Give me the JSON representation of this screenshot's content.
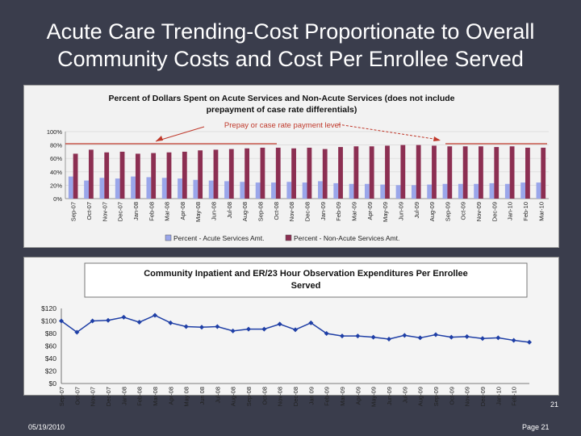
{
  "slide": {
    "title_line1": "Acute Care Trending-Cost Proportionate to Overall",
    "title_line2": "Community Costs and Cost Per Enrollee Served",
    "slide_number": "21",
    "footer_date": "05/19/2010",
    "footer_page": "Page 21"
  },
  "annotation": {
    "label": "Prepay or case rate payment level",
    "color": "#c0392b"
  },
  "chart_data": [
    {
      "type": "bar",
      "title_line1": "Percent of Dollars Spent on Acute Services and Non-Acute Services (does not include",
      "title_line2": "prepayment of case rate differentials)",
      "categories": [
        "Sep-07",
        "Oct-07",
        "Nov-07",
        "Dec-07",
        "Jan-08",
        "Feb-08",
        "Mar-08",
        "Apr-08",
        "May-08",
        "Jun-08",
        "Jul-08",
        "Aug-08",
        "Sep-08",
        "Oct-08",
        "Nov-08",
        "Dec-08",
        "Jan-09",
        "Feb-09",
        "Mar-09",
        "Apr-09",
        "May-09",
        "Jun-09",
        "Jul-09",
        "Aug-09",
        "Sep-09",
        "Oct-09",
        "Nov-09",
        "Dec-09",
        "Jan-10",
        "Feb-10",
        "Mar-10"
      ],
      "y_tick_labels": [
        "0%",
        "20%",
        "40%",
        "60%",
        "80%",
        "100%"
      ],
      "ylim": [
        0,
        100
      ],
      "series": [
        {
          "name": "Percent - Acute Services Amt.",
          "color": "#9aa6ea",
          "values": [
            33,
            27,
            31,
            30,
            33,
            32,
            31,
            30,
            28,
            27,
            26,
            25,
            24,
            24,
            25,
            24,
            26,
            23,
            22,
            22,
            21,
            20,
            20,
            21,
            22,
            22,
            22,
            23,
            22,
            24,
            24
          ]
        },
        {
          "name": "Percent - Non-Acute Services Amt.",
          "color": "#8c2f52",
          "values": [
            67,
            73,
            69,
            70,
            67,
            68,
            69,
            70,
            72,
            73,
            74,
            75,
            76,
            76,
            75,
            76,
            74,
            77,
            78,
            78,
            79,
            80,
            80,
            79,
            78,
            78,
            78,
            77,
            78,
            76,
            76
          ]
        }
      ]
    },
    {
      "type": "line",
      "title_line1": "Community Inpatient and ER/23 Hour Observation Expenditures Per Enrollee",
      "title_line2": "Served",
      "categories": [
        "Sep-07",
        "Oct-07",
        "Nov-07",
        "Dec-07",
        "Jan-08",
        "Feb-08",
        "Mar-08",
        "Apr-08",
        "May-08",
        "Jun-08",
        "Jul-08",
        "Aug-08",
        "Sep-08",
        "Oct-08",
        "Nov-08",
        "Dec-08",
        "Jan-09",
        "Feb-09",
        "Mar-09",
        "Apr-09",
        "May-09",
        "Jun-09",
        "Jul-09",
        "Aug-09",
        "Sep-09",
        "Oct-09",
        "Nov-09",
        "Dec-09",
        "Jan-10",
        "Feb-10",
        "Mar-10"
      ],
      "x_tick_labels": [
        "Sep-07",
        "Oct-07",
        "Nov-07",
        "Dec-07",
        "Jan-08",
        "Feb-08",
        "Mar-08",
        "Apr-08",
        "May 08",
        "Jun 08",
        "Jul-08",
        "Aug-08",
        "Sep-08",
        "Oct-08",
        "Nov-08",
        "Dec-08",
        "Jan 09",
        "Feb-09",
        "Mar-09",
        "Apr-09",
        "May-09",
        "Jun-09",
        "Jul-09",
        "Aug-09",
        "Sep-09",
        "Oct-09",
        "Nov-09",
        "Dec-09",
        "Jan-10",
        "Feb-10"
      ],
      "y_tick_labels": [
        "$0",
        "$20",
        "$40",
        "$60",
        "$80",
        "$100",
        "$120"
      ],
      "ylim": [
        0,
        120
      ],
      "series": [
        {
          "name": "Expenditures Per Enrollee Served",
          "color": "#1f3fa6",
          "values": [
            100,
            82,
            100,
            101,
            106,
            98,
            109,
            97,
            91,
            90,
            91,
            84,
            87,
            87,
            95,
            86,
            97,
            80,
            76,
            76,
            74,
            71,
            77,
            73,
            78,
            74,
            75,
            72,
            73,
            69,
            66
          ]
        }
      ]
    }
  ]
}
